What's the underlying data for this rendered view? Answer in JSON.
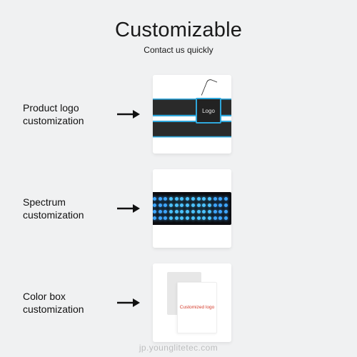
{
  "header": {
    "title": "Customizable",
    "subtitle": "Contact us quickly",
    "title_color": "#1a1a1a",
    "subtitle_color": "#1a1a1a",
    "title_fontsize": 29,
    "subtitle_fontsize": 12
  },
  "background_color": "#f0f1f2",
  "card_bg": "#ffffff",
  "card_shadow": "rgba(0,0,0,0.08)",
  "arrow_color": "#111111",
  "rows": [
    {
      "label": "Product logo customization",
      "type": "belt",
      "belt_body_color": "#2a2a2a",
      "belt_border_color": "#2fa7db",
      "pocket_text": "Logo",
      "pocket_text_color": "#e6e6e6",
      "pocket_bg": "#222222"
    },
    {
      "label": "Spectrum customization",
      "type": "led-grid",
      "panel_bg": "#0c0c10",
      "led_colors": [
        "#3ea6ff",
        "#3ea6ff",
        "#3ea6ff",
        "#4cc3ff",
        "#4cc3ff",
        "#4cc3ff",
        "#4cc3ff",
        "#4cc3ff",
        "#4cc3ff",
        "#4cc3ff",
        "#4cc3ff",
        "#3ea6ff",
        "#3ea6ff",
        "#3ea6ff"
      ],
      "led_rows": 4,
      "led_cols": 14
    },
    {
      "label": "Color box customization",
      "type": "box",
      "box_back_color": "#e7e7e7",
      "box_front_color": "#ffffff",
      "box_text": "Customized logo",
      "box_text_color": "#d43a2a"
    }
  ],
  "watermark": "jp.younglitetec.com",
  "watermark_color": "rgba(0,0,0,0.22)"
}
